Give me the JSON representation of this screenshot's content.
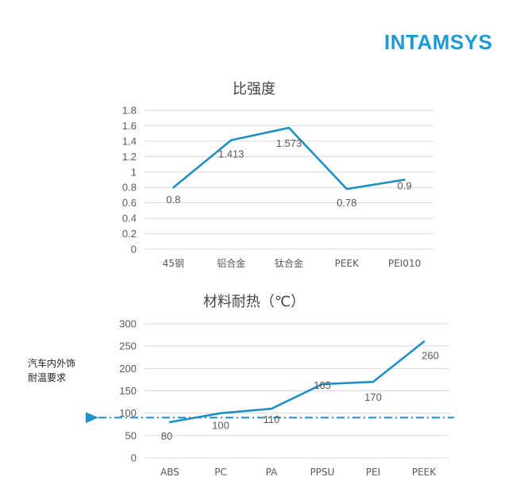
{
  "logo": {
    "text": "INTAMSYS"
  },
  "annotation": {
    "text": "汽车内外饰\n耐温要求"
  },
  "colors": {
    "series": "#1f8fc7",
    "grid": "#d9d9d9",
    "brand": "#1a9ad6"
  },
  "chart_data": [
    {
      "type": "line",
      "title": "比强度",
      "categories": [
        "45钢",
        "铝合金",
        "钛合金",
        "PEEK",
        "PEI010"
      ],
      "values": [
        0.8,
        1.413,
        1.573,
        0.78,
        0.9
      ],
      "data_labels": [
        "0.8",
        "1.413",
        "1.573",
        "0.78",
        "0.9"
      ],
      "yticks": [
        "0",
        "0.2",
        "0.4",
        "0.6",
        "0.8",
        "1",
        "1.2",
        "1.4",
        "1.6",
        "1.8"
      ],
      "ylim": [
        0,
        1.8
      ],
      "grid": true,
      "legend": "none"
    },
    {
      "type": "line",
      "title": "材料耐热（℃）",
      "categories": [
        "ABS",
        "PC",
        "PA",
        "PPSU",
        "PEI",
        "PEEK"
      ],
      "values": [
        80,
        100,
        110,
        165,
        170,
        260
      ],
      "data_labels": [
        "80",
        "100",
        "110",
        "165",
        "170",
        "260"
      ],
      "yticks": [
        "0",
        "50",
        "100",
        "150",
        "200",
        "250",
        "300"
      ],
      "ylim": [
        0,
        300
      ],
      "grid": true,
      "legend": "none",
      "reference_line": {
        "value": 90,
        "style": "dash-dot"
      }
    }
  ]
}
